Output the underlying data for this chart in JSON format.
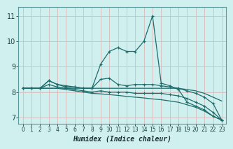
{
  "background_color": "#cff0ee",
  "grid_color": "#d8c0c0",
  "line_color": "#1e6b6b",
  "xlabel": "Humidex (Indice chaleur)",
  "xlim": [
    -0.5,
    23.5
  ],
  "ylim": [
    6.75,
    11.35
  ],
  "yticks": [
    7,
    8,
    9,
    10,
    11
  ],
  "xticks": [
    0,
    1,
    2,
    3,
    4,
    5,
    6,
    7,
    8,
    9,
    10,
    11,
    12,
    13,
    14,
    15,
    16,
    17,
    18,
    19,
    20,
    21,
    22,
    23
  ],
  "curve1_y": [
    8.15,
    8.15,
    8.15,
    8.45,
    8.3,
    8.2,
    8.2,
    8.15,
    8.15,
    9.1,
    9.6,
    9.75,
    9.6,
    9.6,
    10.0,
    11.0,
    8.35,
    8.25,
    8.1,
    7.6,
    7.45,
    7.3,
    7.05,
    6.9
  ],
  "curve2_y": [
    8.15,
    8.15,
    8.15,
    8.15,
    8.15,
    8.15,
    8.15,
    8.15,
    8.15,
    8.15,
    8.15,
    8.15,
    8.15,
    8.15,
    8.15,
    8.15,
    8.15,
    8.15,
    8.15,
    8.1,
    8.05,
    7.95,
    7.8,
    7.65
  ],
  "curve3_y": [
    8.15,
    8.15,
    8.15,
    8.15,
    8.15,
    8.1,
    8.05,
    8.0,
    7.95,
    7.93,
    7.9,
    7.87,
    7.83,
    7.8,
    7.77,
    7.73,
    7.7,
    7.65,
    7.6,
    7.5,
    7.4,
    7.25,
    7.05,
    6.9
  ],
  "curve4_y": [
    8.15,
    8.15,
    8.15,
    8.3,
    8.2,
    8.15,
    8.1,
    8.05,
    8.0,
    8.05,
    8.0,
    8.0,
    8.0,
    7.95,
    7.95,
    7.95,
    7.95,
    7.9,
    7.85,
    7.75,
    7.6,
    7.45,
    7.2,
    6.9
  ],
  "curve5_y": [
    8.15,
    8.15,
    8.15,
    8.45,
    8.3,
    8.25,
    8.2,
    8.15,
    8.15,
    8.5,
    8.55,
    8.3,
    8.25,
    8.3,
    8.3,
    8.3,
    8.25,
    8.2,
    8.15,
    8.05,
    7.95,
    7.8,
    7.55,
    6.9
  ]
}
